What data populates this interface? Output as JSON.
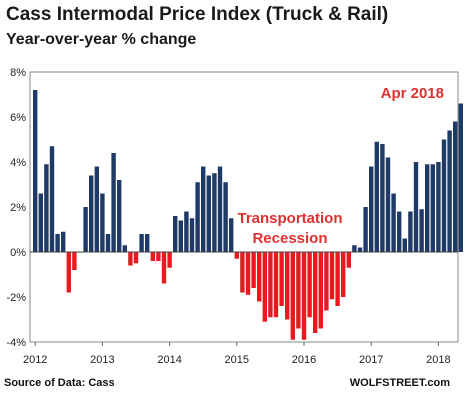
{
  "chart_data": {
    "type": "bar",
    "title": "Cass Intermodal Price Index (Truck & Rail)",
    "subtitle": "Year-over-year % change",
    "ylim": [
      -4,
      8
    ],
    "y_ticks": [
      "8%",
      "6%",
      "4%",
      "2%",
      "0%",
      "-2%",
      "-4%"
    ],
    "x_ticks": [
      "2012",
      "2013",
      "2014",
      "2015",
      "2016",
      "2017",
      "2018"
    ],
    "grid": false,
    "colors": {
      "positive": "#1f3a66",
      "negative": "#e8191f",
      "annotation": "#e03030"
    },
    "series": [
      {
        "values": [
          7.2,
          2.6,
          3.9,
          4.7,
          0.8,
          0.9,
          -1.8,
          -0.8,
          0.0,
          2.0,
          3.4,
          3.8,
          2.6,
          0.8,
          4.4,
          3.2,
          0.3,
          -0.6,
          -0.5,
          0.8,
          0.8,
          -0.4,
          -0.4,
          -1.4,
          -0.7,
          1.6,
          1.4,
          1.8,
          1.5,
          3.1,
          3.8,
          3.4,
          3.5,
          3.8,
          3.1,
          1.5,
          -0.3,
          -1.8,
          -1.9,
          -1.6,
          -2.2,
          -3.1,
          -2.9,
          -2.9,
          -2.4,
          -3.0,
          -3.9,
          -3.4,
          -3.9,
          -2.9,
          -3.6,
          -3.4,
          -2.6,
          -2.1,
          -2.4,
          -2.0,
          -0.7,
          0.3,
          0.2,
          2.0,
          3.8,
          4.9,
          4.8,
          4.2,
          2.6,
          1.8,
          0.6,
          1.8,
          4.0,
          1.9,
          3.9,
          3.9,
          4.0,
          5.0,
          5.4,
          5.8,
          6.6
        ]
      }
    ],
    "annotations": [
      {
        "text": "Apr 2018"
      },
      {
        "text": "Transportation"
      },
      {
        "text": "Recession"
      }
    ],
    "source": "Source of Data: Cass",
    "brand": "WOLFSTREET.com"
  }
}
